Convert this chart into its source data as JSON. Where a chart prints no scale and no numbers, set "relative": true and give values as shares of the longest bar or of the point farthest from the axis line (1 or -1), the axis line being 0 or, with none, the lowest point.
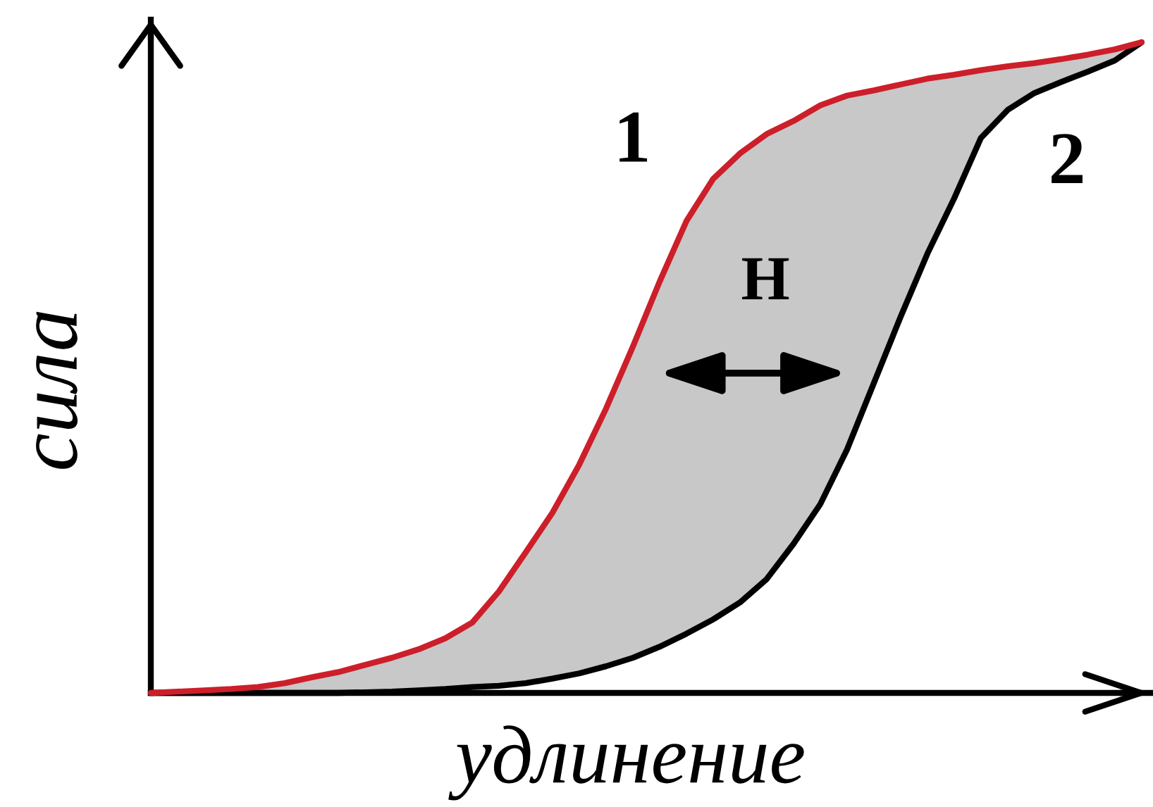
{
  "chart_data": {
    "type": "line",
    "relative": true,
    "xlabel": "удлинение",
    "ylabel": "сила",
    "categories": [
      null,
      null,
      null,
      null,
      null,
      null,
      null,
      null,
      null,
      null,
      null,
      null,
      null,
      null,
      null,
      null,
      null,
      null,
      null,
      null,
      null,
      null,
      null,
      null,
      null,
      null,
      null,
      null,
      null,
      null,
      null,
      null,
      null,
      null,
      null,
      null,
      null,
      null
    ],
    "series": [
      {
        "name": "1",
        "color": "#cc1f2a",
        "values": [
          0,
          0.002,
          0.004,
          0.006,
          0.009,
          0.015,
          0.024,
          0.032,
          0.043,
          0.054,
          0.067,
          0.084,
          0.108,
          0.156,
          0.216,
          0.277,
          0.351,
          0.437,
          0.532,
          0.632,
          0.725,
          0.79,
          0.829,
          0.859,
          0.879,
          0.903,
          0.918,
          0.926,
          0.935,
          0.944,
          0.95,
          0.957,
          0.963,
          0.968,
          0.974,
          0.981,
          0.989,
          1
        ],
        "lower": [
          0,
          0,
          0,
          0,
          0,
          0,
          0,
          0,
          0.001,
          0.002,
          0.004,
          0.006,
          0.009,
          0.011,
          0.015,
          0.022,
          0.03,
          0.041,
          0.054,
          0.071,
          0.091,
          0.113,
          0.139,
          0.175,
          0.229,
          0.29,
          0.374,
          0.476,
          0.578,
          0.675,
          0.76,
          0.853,
          0.896,
          0.922,
          0.939,
          0.955,
          0.972,
          1
        ],
        "upper": [
          0,
          0.002,
          0.004,
          0.006,
          0.009,
          0.015,
          0.024,
          0.032,
          0.043,
          0.054,
          0.067,
          0.084,
          0.108,
          0.156,
          0.216,
          0.277,
          0.351,
          0.437,
          0.532,
          0.632,
          0.725,
          0.79,
          0.829,
          0.859,
          0.879,
          0.903,
          0.918,
          0.926,
          0.935,
          0.944,
          0.95,
          0.957,
          0.963,
          0.968,
          0.974,
          0.981,
          0.989,
          1
        ]
      },
      {
        "name": "2",
        "color": "#000000",
        "values": [
          0,
          0,
          0,
          0,
          0,
          0,
          0,
          0,
          0.001,
          0.002,
          0.004,
          0.006,
          0.009,
          0.011,
          0.015,
          0.022,
          0.03,
          0.041,
          0.054,
          0.071,
          0.091,
          0.113,
          0.139,
          0.175,
          0.229,
          0.29,
          0.374,
          0.476,
          0.578,
          0.675,
          0.76,
          0.853,
          0.896,
          0.922,
          0.939,
          0.955,
          0.972,
          1
        ]
      }
    ],
    "annotations": [
      "H"
    ]
  }
}
